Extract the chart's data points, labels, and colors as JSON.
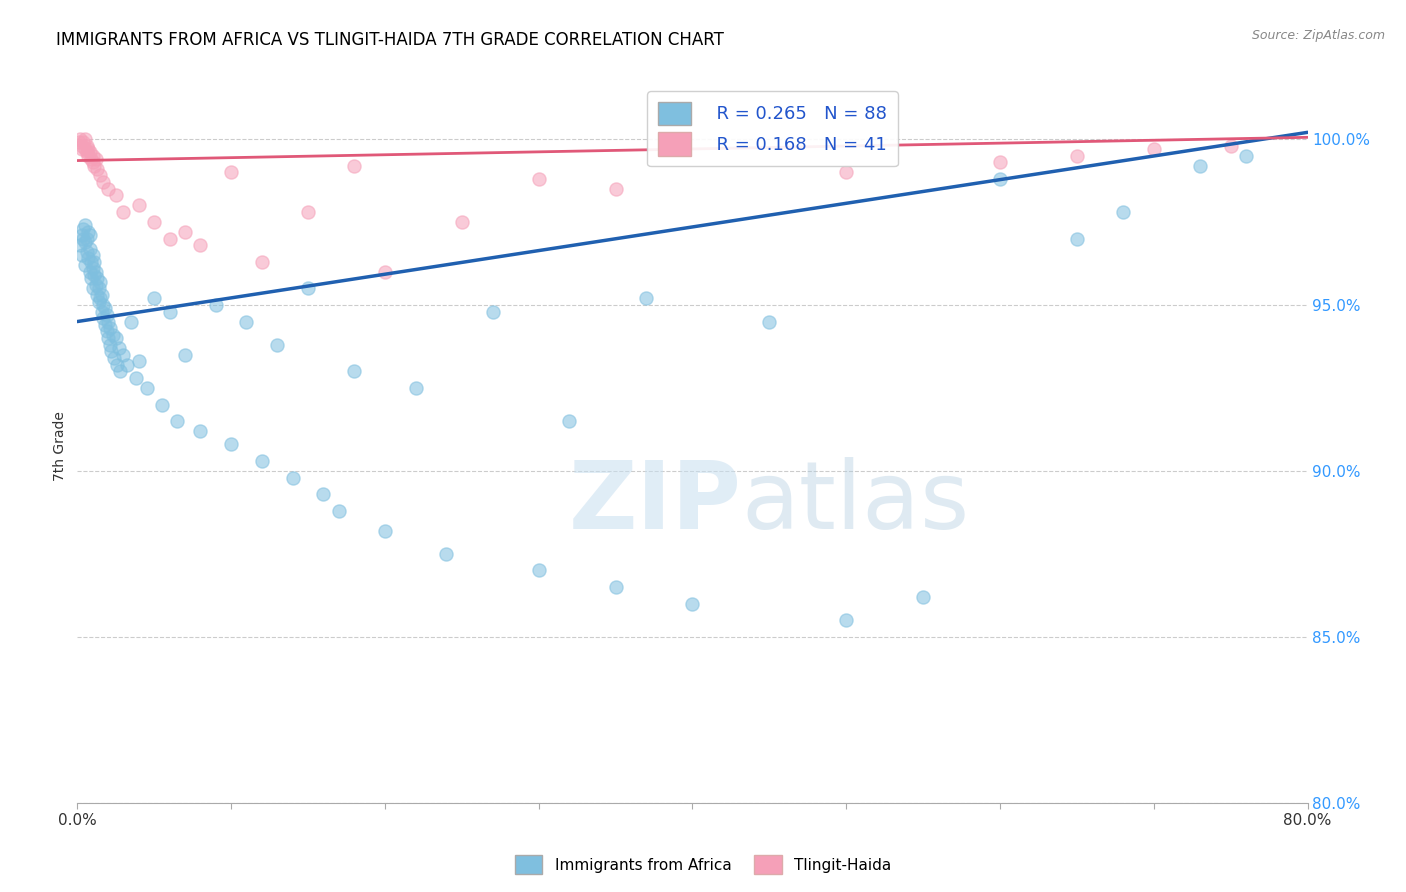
{
  "title": "IMMIGRANTS FROM AFRICA VS TLINGIT-HAIDA 7TH GRADE CORRELATION CHART",
  "source": "Source: ZipAtlas.com",
  "ylabel": "7th Grade",
  "right_labels": [
    100.0,
    95.0,
    90.0,
    85.0,
    80.0
  ],
  "xlim": [
    0.0,
    80.0
  ],
  "ylim": [
    80.0,
    101.5
  ],
  "legend_blue_label": "Immigrants from Africa",
  "legend_pink_label": "Tlingit-Haida",
  "R_blue": 0.265,
  "N_blue": 88,
  "R_pink": 0.168,
  "N_pink": 41,
  "blue_color": "#7fbfdf",
  "pink_color": "#f5a0b8",
  "blue_line_color": "#2060b0",
  "pink_line_color": "#e05878",
  "watermark_zip": "ZIP",
  "watermark_atlas": "atlas",
  "blue_line_x": [
    0.0,
    80.0
  ],
  "blue_line_y": [
    94.5,
    100.2
  ],
  "pink_line_x": [
    0.0,
    80.0
  ],
  "pink_line_y": [
    99.35,
    100.05
  ],
  "blue_points": [
    [
      0.2,
      96.8
    ],
    [
      0.3,
      97.1
    ],
    [
      0.3,
      96.5
    ],
    [
      0.4,
      97.3
    ],
    [
      0.4,
      97.0
    ],
    [
      0.5,
      96.9
    ],
    [
      0.5,
      97.4
    ],
    [
      0.5,
      96.2
    ],
    [
      0.6,
      97.0
    ],
    [
      0.6,
      96.6
    ],
    [
      0.7,
      97.2
    ],
    [
      0.7,
      96.4
    ],
    [
      0.8,
      97.1
    ],
    [
      0.8,
      96.0
    ],
    [
      0.8,
      96.7
    ],
    [
      0.9,
      96.3
    ],
    [
      0.9,
      95.8
    ],
    [
      1.0,
      96.5
    ],
    [
      1.0,
      95.5
    ],
    [
      1.0,
      96.1
    ],
    [
      1.1,
      95.9
    ],
    [
      1.1,
      96.3
    ],
    [
      1.2,
      95.6
    ],
    [
      1.2,
      96.0
    ],
    [
      1.3,
      95.3
    ],
    [
      1.3,
      95.8
    ],
    [
      1.4,
      95.1
    ],
    [
      1.4,
      95.5
    ],
    [
      1.5,
      95.2
    ],
    [
      1.5,
      95.7
    ],
    [
      1.6,
      94.8
    ],
    [
      1.6,
      95.3
    ],
    [
      1.7,
      94.6
    ],
    [
      1.7,
      95.0
    ],
    [
      1.8,
      94.4
    ],
    [
      1.8,
      94.9
    ],
    [
      1.9,
      94.2
    ],
    [
      1.9,
      94.7
    ],
    [
      2.0,
      94.0
    ],
    [
      2.0,
      94.5
    ],
    [
      2.1,
      93.8
    ],
    [
      2.1,
      94.3
    ],
    [
      2.2,
      93.6
    ],
    [
      2.3,
      94.1
    ],
    [
      2.4,
      93.4
    ],
    [
      2.5,
      94.0
    ],
    [
      2.6,
      93.2
    ],
    [
      2.7,
      93.7
    ],
    [
      2.8,
      93.0
    ],
    [
      3.0,
      93.5
    ],
    [
      3.2,
      93.2
    ],
    [
      3.5,
      94.5
    ],
    [
      3.8,
      92.8
    ],
    [
      4.0,
      93.3
    ],
    [
      4.5,
      92.5
    ],
    [
      5.0,
      95.2
    ],
    [
      5.5,
      92.0
    ],
    [
      6.0,
      94.8
    ],
    [
      6.5,
      91.5
    ],
    [
      7.0,
      93.5
    ],
    [
      8.0,
      91.2
    ],
    [
      9.0,
      95.0
    ],
    [
      10.0,
      90.8
    ],
    [
      11.0,
      94.5
    ],
    [
      12.0,
      90.3
    ],
    [
      13.0,
      93.8
    ],
    [
      14.0,
      89.8
    ],
    [
      15.0,
      95.5
    ],
    [
      16.0,
      89.3
    ],
    [
      17.0,
      88.8
    ],
    [
      18.0,
      93.0
    ],
    [
      20.0,
      88.2
    ],
    [
      22.0,
      92.5
    ],
    [
      24.0,
      87.5
    ],
    [
      27.0,
      94.8
    ],
    [
      30.0,
      87.0
    ],
    [
      32.0,
      91.5
    ],
    [
      35.0,
      86.5
    ],
    [
      37.0,
      95.2
    ],
    [
      40.0,
      86.0
    ],
    [
      45.0,
      94.5
    ],
    [
      50.0,
      85.5
    ],
    [
      55.0,
      86.2
    ],
    [
      60.0,
      98.8
    ],
    [
      65.0,
      97.0
    ],
    [
      68.0,
      97.8
    ],
    [
      73.0,
      99.2
    ],
    [
      76.0,
      99.5
    ]
  ],
  "pink_points": [
    [
      0.1,
      99.9
    ],
    [
      0.2,
      100.0
    ],
    [
      0.3,
      99.8
    ],
    [
      0.3,
      99.7
    ],
    [
      0.4,
      99.9
    ],
    [
      0.5,
      99.7
    ],
    [
      0.5,
      100.0
    ],
    [
      0.6,
      99.6
    ],
    [
      0.6,
      99.8
    ],
    [
      0.7,
      99.7
    ],
    [
      0.7,
      99.5
    ],
    [
      0.8,
      99.6
    ],
    [
      0.9,
      99.4
    ],
    [
      1.0,
      99.5
    ],
    [
      1.0,
      99.3
    ],
    [
      1.1,
      99.2
    ],
    [
      1.2,
      99.4
    ],
    [
      1.3,
      99.1
    ],
    [
      1.5,
      98.9
    ],
    [
      1.7,
      98.7
    ],
    [
      2.0,
      98.5
    ],
    [
      2.5,
      98.3
    ],
    [
      3.0,
      97.8
    ],
    [
      4.0,
      98.0
    ],
    [
      5.0,
      97.5
    ],
    [
      6.0,
      97.0
    ],
    [
      7.0,
      97.2
    ],
    [
      8.0,
      96.8
    ],
    [
      10.0,
      99.0
    ],
    [
      12.0,
      96.3
    ],
    [
      15.0,
      97.8
    ],
    [
      18.0,
      99.2
    ],
    [
      20.0,
      96.0
    ],
    [
      25.0,
      97.5
    ],
    [
      30.0,
      98.8
    ],
    [
      35.0,
      98.5
    ],
    [
      50.0,
      99.0
    ],
    [
      60.0,
      99.3
    ],
    [
      65.0,
      99.5
    ],
    [
      70.0,
      99.7
    ],
    [
      75.0,
      99.8
    ]
  ]
}
